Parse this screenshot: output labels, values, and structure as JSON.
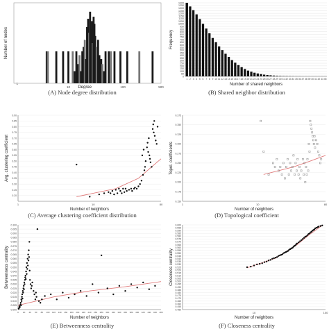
{
  "captions": {
    "a": "(A) Node degree distribution",
    "b": "(B) Shared neighbor distribution",
    "c": "(C) Average clustering coefficient distribution",
    "d": "(D) Topological coefficient",
    "e": "(E) Betweenness centrality",
    "f": "(F) Closeness centrality"
  },
  "chart_data": [
    {
      "id": "a",
      "type": "bar",
      "title": "(A) Node degree distribution",
      "xlabel": "Degree",
      "ylabel": "Number of nodes",
      "x_scale": "log",
      "y_scale": "log",
      "xlim": [
        1,
        500
      ],
      "xticks": [
        "10",
        "100",
        "500"
      ],
      "yticks": [
        "1"
      ],
      "color": "#1a1a1a",
      "x": [
        4,
        4.2,
        6,
        8,
        10,
        12,
        13,
        14,
        15,
        16,
        17,
        18,
        19,
        20,
        21,
        22,
        23,
        24,
        25,
        26,
        27,
        28,
        29,
        30,
        31,
        33,
        35,
        37,
        40,
        42,
        45,
        48,
        55,
        60,
        70,
        90,
        120,
        200,
        350
      ],
      "values": [
        1,
        1,
        1,
        1,
        1,
        1,
        2,
        1,
        3,
        5,
        2,
        1,
        8,
        12,
        4,
        25,
        40,
        18,
        60,
        22,
        35,
        10,
        45,
        30,
        15,
        8,
        12,
        5,
        4,
        3,
        2,
        1,
        1,
        1,
        1,
        1,
        1,
        1,
        1
      ]
    },
    {
      "id": "b",
      "type": "bar",
      "title": "(B) Shared neighbor distribution",
      "xlabel": "Number of shared neighbors",
      "ylabel": "Frequency",
      "ylim": [
        0,
        1400
      ],
      "categories": [
        "1",
        "2",
        "3",
        "4",
        "5",
        "6",
        "7",
        "8",
        "9",
        "10",
        "11",
        "12",
        "13",
        "14",
        "15",
        "16",
        "17",
        "18",
        "19",
        "20",
        "21",
        "22",
        "23",
        "24",
        "25",
        "26",
        "27",
        "28",
        "29",
        "30",
        "31",
        "32",
        "33",
        "34",
        "35",
        "36",
        "37",
        "38",
        "39",
        "40",
        "41",
        "42",
        "43",
        "45"
      ],
      "values": [
        1400,
        1330,
        1260,
        1180,
        1090,
        1000,
        910,
        820,
        730,
        650,
        570,
        500,
        430,
        370,
        310,
        260,
        215,
        175,
        140,
        110,
        88,
        70,
        55,
        43,
        33,
        26,
        20,
        15,
        11,
        8,
        6,
        5,
        4,
        3,
        2,
        2,
        1,
        1,
        1,
        1,
        1,
        1,
        1,
        1
      ],
      "yticks": [
        "0",
        "50",
        "100",
        "150",
        "200",
        "250",
        "300",
        "350",
        "400",
        "450",
        "500",
        "550",
        "600",
        "650",
        "700",
        "750",
        "800",
        "850",
        "900",
        "950",
        "1000",
        "1050",
        "1100",
        "1150",
        "1200",
        "1250",
        "1300",
        "1350",
        "1400"
      ],
      "color": "#111111"
    },
    {
      "id": "c",
      "type": "scatter",
      "title": "(C) Average clustering coefficient distribution",
      "xlabel": "Number of neighbors",
      "ylabel": "Avg. clustering coefficient",
      "x_scale": "log",
      "xlim": [
        1,
        80
      ],
      "ylim": [
        0.15,
        0.9
      ],
      "xticks": [
        "1",
        "10",
        "80"
      ],
      "yticks": [
        "0.20",
        "0.25",
        "0.30",
        "0.35",
        "0.40",
        "0.45",
        "0.50",
        "0.55",
        "0.60",
        "0.65",
        "0.70",
        "0.75",
        "0.80",
        "0.85",
        "0.90"
      ],
      "points": [
        [
          6,
          0.47
        ],
        [
          9,
          0.19
        ],
        [
          12,
          0.21
        ],
        [
          14,
          0.22
        ],
        [
          16,
          0.23
        ],
        [
          17,
          0.22
        ],
        [
          18,
          0.24
        ],
        [
          19,
          0.21
        ],
        [
          20,
          0.25
        ],
        [
          21,
          0.22
        ],
        [
          22,
          0.26
        ],
        [
          23,
          0.24
        ],
        [
          24,
          0.22
        ],
        [
          25,
          0.26
        ],
        [
          26,
          0.23
        ],
        [
          27,
          0.26
        ],
        [
          28,
          0.24
        ],
        [
          30,
          0.25
        ],
        [
          32,
          0.26
        ],
        [
          33,
          0.24
        ],
        [
          35,
          0.26
        ],
        [
          36,
          0.27
        ],
        [
          38,
          0.26
        ],
        [
          40,
          0.28
        ],
        [
          42,
          0.3
        ],
        [
          44,
          0.33
        ],
        [
          45,
          0.55
        ],
        [
          46,
          0.38
        ],
        [
          47,
          0.6
        ],
        [
          48,
          0.42
        ],
        [
          49,
          0.45
        ],
        [
          50,
          0.5
        ],
        [
          52,
          0.62
        ],
        [
          53,
          0.66
        ],
        [
          54,
          0.58
        ],
        [
          55,
          0.7
        ],
        [
          56,
          0.55
        ],
        [
          57,
          0.52
        ],
        [
          58,
          0.49
        ],
        [
          60,
          0.45
        ],
        [
          62,
          0.78
        ],
        [
          63,
          0.82
        ],
        [
          64,
          0.75
        ],
        [
          65,
          0.85
        ],
        [
          66,
          0.72
        ],
        [
          68,
          0.68
        ],
        [
          70,
          0.65
        ],
        [
          72,
          0.8
        ]
      ],
      "trend": [
        [
          6,
          0.19
        ],
        [
          20,
          0.26
        ],
        [
          40,
          0.35
        ],
        [
          60,
          0.45
        ],
        [
          80,
          0.52
        ]
      ],
      "color": "#111111",
      "trend_color": "#e07a7a"
    },
    {
      "id": "d",
      "type": "scatter",
      "title": "(D) Topological coefficient",
      "xlabel": "Number of neighbors",
      "ylabel": "Topol. coefficients",
      "x_scale": "log",
      "xlim": [
        1,
        80
      ],
      "ylim": [
        0.15,
        0.375
      ],
      "xticks": [
        "1",
        "10",
        "80"
      ],
      "yticks": [
        "0.150",
        "0.175",
        "0.200",
        "0.225",
        "0.250",
        "0.275",
        "0.300",
        "0.325",
        "0.350",
        "0.375"
      ],
      "points": [
        [
          11,
          0.36
        ],
        [
          12,
          0.28
        ],
        [
          14,
          0.22
        ],
        [
          16,
          0.25
        ],
        [
          17,
          0.24
        ],
        [
          18,
          0.26
        ],
        [
          19,
          0.23
        ],
        [
          20,
          0.24
        ],
        [
          21,
          0.22
        ],
        [
          22,
          0.25
        ],
        [
          23,
          0.21
        ],
        [
          24,
          0.24
        ],
        [
          25,
          0.26
        ],
        [
          26,
          0.22
        ],
        [
          27,
          0.25
        ],
        [
          28,
          0.23
        ],
        [
          29,
          0.24
        ],
        [
          30,
          0.27
        ],
        [
          31,
          0.22
        ],
        [
          32,
          0.25
        ],
        [
          33,
          0.23
        ],
        [
          34,
          0.26
        ],
        [
          35,
          0.22
        ],
        [
          36,
          0.24
        ],
        [
          37,
          0.21
        ],
        [
          38,
          0.23
        ],
        [
          40,
          0.26
        ],
        [
          41,
          0.22
        ],
        [
          42,
          0.25
        ],
        [
          43,
          0.2
        ],
        [
          44,
          0.24
        ],
        [
          45,
          0.22
        ],
        [
          46,
          0.26
        ],
        [
          47,
          0.23
        ],
        [
          48,
          0.3
        ],
        [
          49,
          0.28
        ],
        [
          50,
          0.36
        ],
        [
          51,
          0.35
        ],
        [
          52,
          0.34
        ],
        [
          53,
          0.33
        ],
        [
          54,
          0.32
        ],
        [
          55,
          0.31
        ],
        [
          56,
          0.3
        ],
        [
          57,
          0.32
        ],
        [
          58,
          0.29
        ],
        [
          60,
          0.31
        ],
        [
          62,
          0.3
        ],
        [
          64,
          0.28
        ],
        [
          66,
          0.27
        ],
        [
          68,
          0.25
        ],
        [
          70,
          0.26
        ]
      ],
      "trend": [
        [
          12,
          0.22
        ],
        [
          30,
          0.24
        ],
        [
          50,
          0.255
        ],
        [
          80,
          0.27
        ]
      ],
      "color": "#888888",
      "trend_color": "#e07a7a"
    },
    {
      "id": "e",
      "type": "scatter",
      "title": "(E) Betweenness centrality",
      "xlabel": "Number of neighbors",
      "ylabel": "Betweenness centrality",
      "xlim": [
        0,
        480
      ],
      "ylim": [
        0,
        0.1
      ],
      "xticks": [
        "0",
        "20",
        "40",
        "60",
        "80",
        "100",
        "120",
        "140",
        "160",
        "180",
        "200",
        "220",
        "240",
        "260",
        "280",
        "300",
        "320",
        "340",
        "360",
        "380",
        "400",
        "420",
        "440",
        "460",
        "480"
      ],
      "yticks": [
        "0.000",
        "0.005",
        "0.010",
        "0.015",
        "0.020",
        "0.025",
        "0.030",
        "0.035",
        "0.040",
        "0.045",
        "0.050",
        "0.055",
        "0.060",
        "0.065",
        "0.070",
        "0.075",
        "0.080",
        "0.085",
        "0.090",
        "0.095",
        "0.100"
      ],
      "points": [
        [
          2,
          0.001
        ],
        [
          4,
          0.002
        ],
        [
          5,
          0.004
        ],
        [
          6,
          0.003
        ],
        [
          8,
          0.006
        ],
        [
          9,
          0.008
        ],
        [
          10,
          0.005
        ],
        [
          11,
          0.012
        ],
        [
          12,
          0.01
        ],
        [
          13,
          0.015
        ],
        [
          14,
          0.018
        ],
        [
          15,
          0.013
        ],
        [
          16,
          0.022
        ],
        [
          17,
          0.02
        ],
        [
          18,
          0.025
        ],
        [
          19,
          0.028
        ],
        [
          20,
          0.024
        ],
        [
          21,
          0.032
        ],
        [
          22,
          0.03
        ],
        [
          23,
          0.035
        ],
        [
          24,
          0.038
        ],
        [
          25,
          0.04
        ],
        [
          26,
          0.036
        ],
        [
          27,
          0.045
        ],
        [
          28,
          0.05
        ],
        [
          29,
          0.042
        ],
        [
          30,
          0.055
        ],
        [
          31,
          0.048
        ],
        [
          32,
          0.06
        ],
        [
          33,
          0.052
        ],
        [
          34,
          0.065
        ],
        [
          35,
          0.058
        ],
        [
          36,
          0.07
        ],
        [
          37,
          0.062
        ],
        [
          38,
          0.08
        ],
        [
          39,
          0.046
        ],
        [
          40,
          0.035
        ],
        [
          42,
          0.03
        ],
        [
          44,
          0.025
        ],
        [
          46,
          0.028
        ],
        [
          48,
          0.032
        ],
        [
          52,
          0.022
        ],
        [
          55,
          0.018
        ],
        [
          58,
          0.012
        ],
        [
          60,
          0.02
        ],
        [
          62,
          0.015
        ],
        [
          65,
          0.095
        ],
        [
          70,
          0.01
        ],
        [
          75,
          0.008
        ],
        [
          80,
          0.012
        ],
        [
          90,
          0.016
        ],
        [
          110,
          0.018
        ],
        [
          130,
          0.012
        ],
        [
          150,
          0.02
        ],
        [
          170,
          0.014
        ],
        [
          190,
          0.018
        ],
        [
          210,
          0.022
        ],
        [
          230,
          0.016
        ],
        [
          250,
          0.03
        ],
        [
          270,
          0.02
        ],
        [
          280,
          0.064
        ],
        [
          300,
          0.025
        ],
        [
          320,
          0.018
        ],
        [
          340,
          0.028
        ],
        [
          360,
          0.022
        ],
        [
          380,
          0.03
        ],
        [
          400,
          0.026
        ],
        [
          420,
          0.032
        ],
        [
          440,
          0.024
        ],
        [
          460,
          0.028
        ]
      ],
      "trend": [
        [
          0,
          0.005
        ],
        [
          120,
          0.015
        ],
        [
          240,
          0.022
        ],
        [
          360,
          0.027
        ],
        [
          480,
          0.033
        ]
      ],
      "color": "#111111",
      "trend_color": "#e07a7a"
    },
    {
      "id": "f",
      "type": "scatter",
      "title": "(F) Closeness centrality",
      "xlabel": "Number of neighbors",
      "ylabel": "Closeness centrality",
      "x_scale": "log",
      "xlim": [
        1,
        100
      ],
      "ylim": [
        0.45,
        0.6
      ],
      "xticks": [
        "10",
        "100"
      ],
      "yticks": [
        "0.450",
        "0.455",
        "0.460",
        "0.465",
        "0.470",
        "0.475",
        "0.480",
        "0.485",
        "0.490",
        "0.495",
        "0.500",
        "0.505",
        "0.510",
        "0.515",
        "0.520",
        "0.525",
        "0.530",
        "0.535",
        "0.540",
        "0.545",
        "0.550",
        "0.555",
        "0.560",
        "0.565",
        "0.570",
        "0.575",
        "0.580",
        "0.585",
        "0.590",
        "0.595",
        "0.600"
      ],
      "points": [
        [
          8,
          0.525
        ],
        [
          9,
          0.526
        ],
        [
          10,
          0.528
        ],
        [
          11,
          0.53
        ],
        [
          12,
          0.531
        ],
        [
          13,
          0.532
        ],
        [
          14,
          0.534
        ],
        [
          15,
          0.535
        ],
        [
          16,
          0.537
        ],
        [
          17,
          0.538
        ],
        [
          18,
          0.54
        ],
        [
          19,
          0.541
        ],
        [
          20,
          0.542
        ],
        [
          21,
          0.543
        ],
        [
          22,
          0.545
        ],
        [
          23,
          0.546
        ],
        [
          24,
          0.547
        ],
        [
          25,
          0.548
        ],
        [
          26,
          0.55
        ],
        [
          27,
          0.551
        ],
        [
          28,
          0.552
        ],
        [
          29,
          0.553
        ],
        [
          30,
          0.554
        ],
        [
          31,
          0.556
        ],
        [
          32,
          0.557
        ],
        [
          33,
          0.558
        ],
        [
          34,
          0.559
        ],
        [
          35,
          0.56
        ],
        [
          36,
          0.562
        ],
        [
          37,
          0.563
        ],
        [
          38,
          0.564
        ],
        [
          39,
          0.566
        ],
        [
          40,
          0.567
        ],
        [
          42,
          0.569
        ],
        [
          44,
          0.571
        ],
        [
          46,
          0.573
        ],
        [
          48,
          0.575
        ],
        [
          50,
          0.577
        ],
        [
          52,
          0.579
        ],
        [
          54,
          0.58
        ],
        [
          56,
          0.582
        ],
        [
          58,
          0.584
        ],
        [
          60,
          0.585
        ],
        [
          62,
          0.587
        ],
        [
          64,
          0.588
        ],
        [
          66,
          0.59
        ],
        [
          68,
          0.591
        ],
        [
          70,
          0.592
        ],
        [
          72,
          0.594
        ],
        [
          75,
          0.595
        ],
        [
          78,
          0.596
        ],
        [
          80,
          0.597
        ],
        [
          85,
          0.598
        ],
        [
          90,
          0.599
        ]
      ],
      "trend": [
        [
          8,
          0.524
        ],
        [
          20,
          0.541
        ],
        [
          40,
          0.565
        ],
        [
          60,
          0.583
        ],
        [
          90,
          0.599
        ]
      ],
      "color": "#111111",
      "trend_color": "#e07a7a"
    }
  ]
}
